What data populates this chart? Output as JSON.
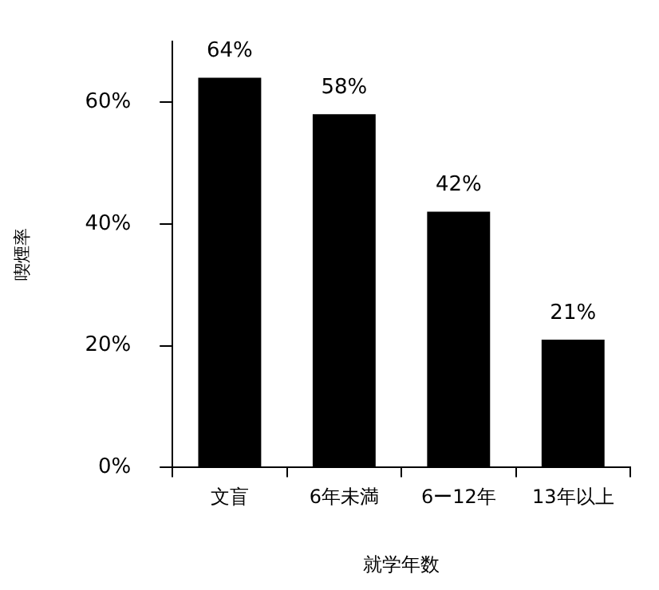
{
  "chart_data": {
    "type": "bar",
    "xlabel": "就学年数",
    "ylabel": "喫煙率",
    "categories": [
      "文盲",
      "6年未満",
      "6ー12年",
      "13年以上"
    ],
    "values": [
      64,
      58,
      42,
      21
    ],
    "value_labels": [
      "64%",
      "58%",
      "42%",
      "21%"
    ],
    "color": "#000000",
    "ylim": [
      0,
      70
    ],
    "yticks": [
      {
        "value": 0,
        "label": "0%"
      },
      {
        "value": 20,
        "label": "20%"
      },
      {
        "value": 40,
        "label": "40%"
      },
      {
        "value": 60,
        "label": "60%"
      }
    ],
    "grid": false,
    "legend": false
  }
}
